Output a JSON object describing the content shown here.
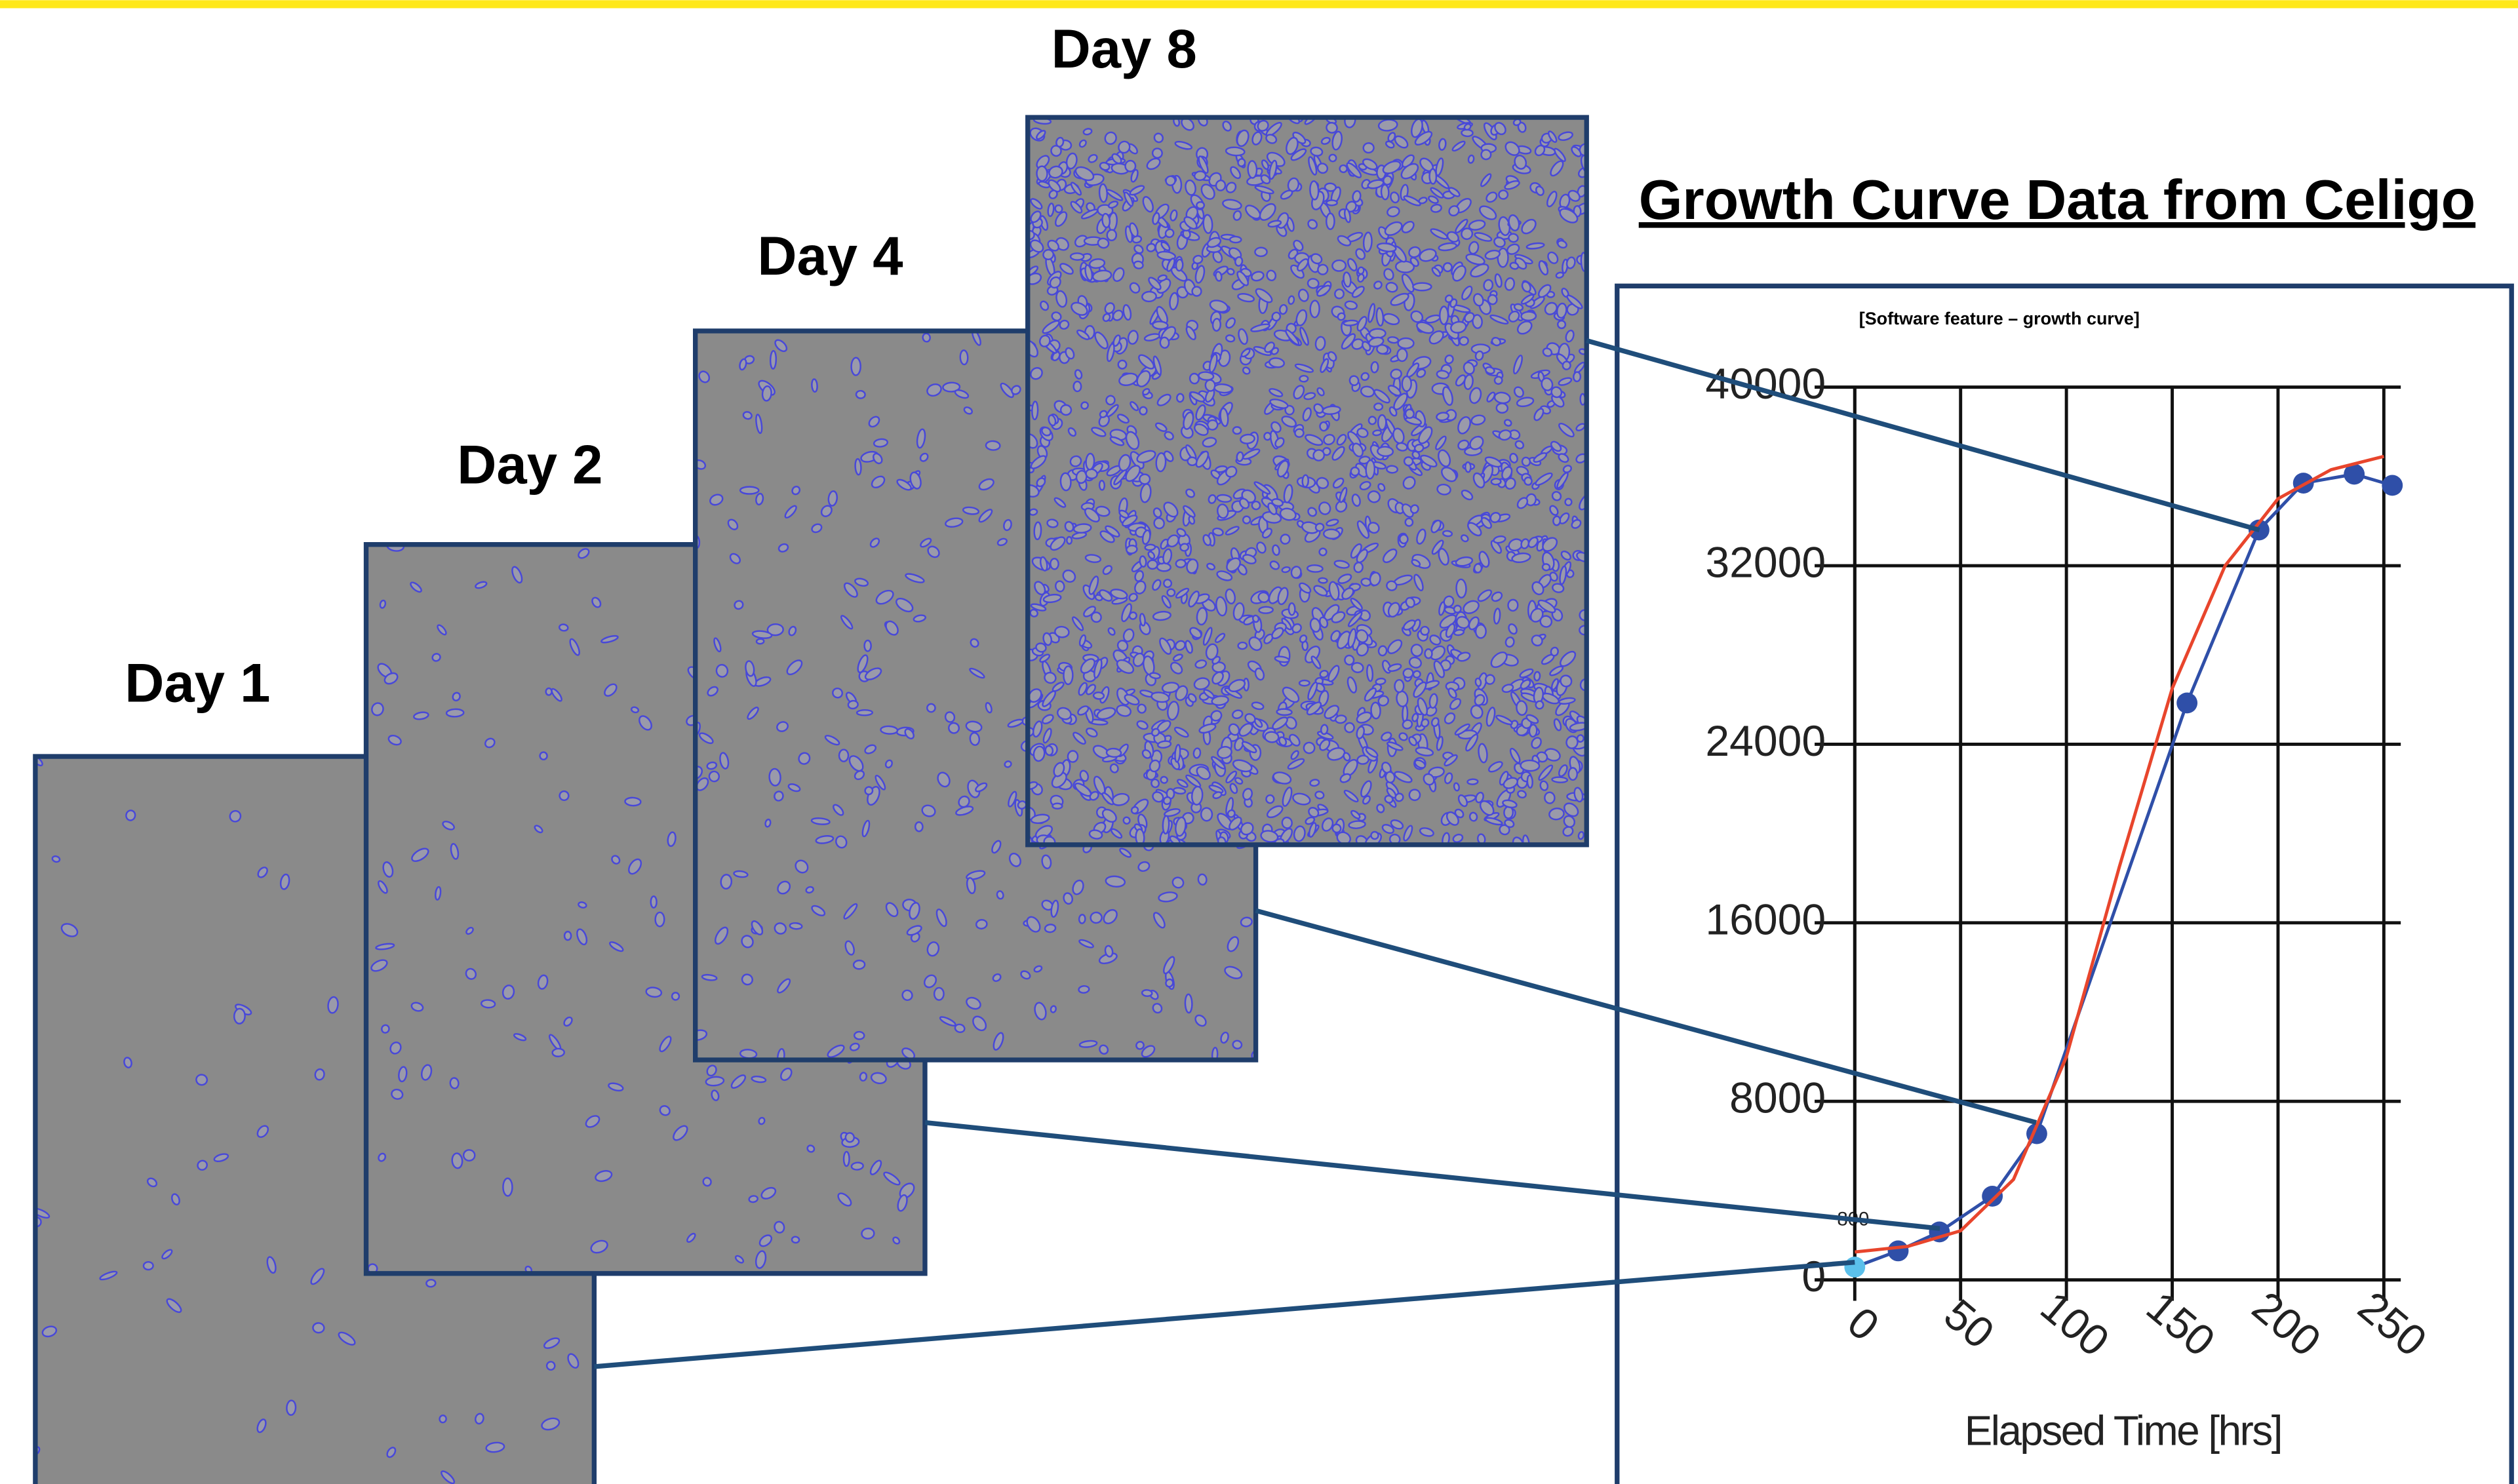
{
  "slide": {
    "labels": [
      "Day 1",
      "Day 2",
      "Day 4",
      "Day 8"
    ]
  },
  "chart_data": {
    "type": "line",
    "title": "Growth Curve Data from Celigo",
    "subtitle": "[Software feature – growth curve]",
    "x_label": "Elapsed Time [hrs]",
    "annotation": "800",
    "xlim": [
      0,
      258
    ],
    "xticks": [
      0,
      50,
      100,
      150,
      200,
      250
    ],
    "ylim": [
      0,
      40000
    ],
    "yticks": [
      0,
      8000,
      16000,
      24000,
      32000,
      40000
    ],
    "grid": true,
    "series": [
      {
        "color": "#2f4fa8",
        "first_point_color": "#5bc0eb",
        "markers": true,
        "x": [
          0,
          20.5,
          40,
          65,
          86,
          157,
          191,
          212,
          236,
          254
        ],
        "values": [
          575,
          1300,
          2150,
          3750,
          6550,
          25850,
          33600,
          35700,
          36100,
          35600
        ]
      },
      {
        "color": "#e8452c",
        "markers": false,
        "x": [
          0,
          25,
          50,
          75,
          100,
          125,
          150,
          175,
          200,
          225,
          250
        ],
        "values": [
          1250,
          1500,
          2200,
          4500,
          10000,
          18500,
          26500,
          32000,
          35000,
          36300,
          36900
        ]
      }
    ]
  }
}
